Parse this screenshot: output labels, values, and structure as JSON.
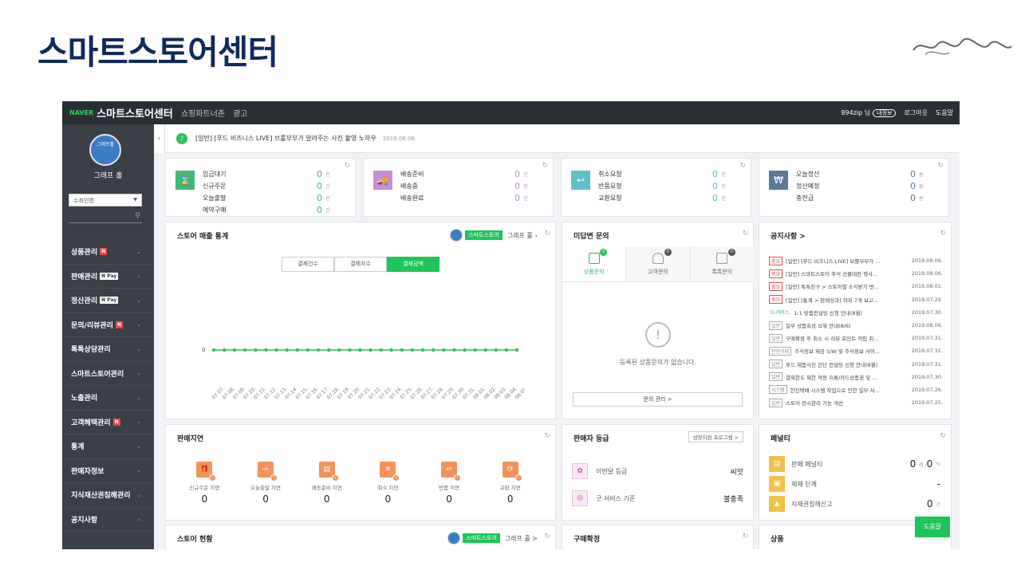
{
  "slide": {
    "title": "스마트스토어센터"
  },
  "topbar": {
    "naver": "NAVER",
    "title": "스마트스토어센터",
    "links": [
      "쇼핑파트너존",
      "광고"
    ],
    "user": "894zip 님",
    "badge": "내정보",
    "logout": "로그아웃",
    "help": "도움말"
  },
  "sidebar": {
    "shop_name": "그래프 홀",
    "avatar_text": "그래프홀",
    "select": "수취인명",
    "menu": [
      {
        "label": "상품관리",
        "badge": "N",
        "pay": ""
      },
      {
        "label": "판매관리",
        "badge": "",
        "pay": "N Pay"
      },
      {
        "label": "정산관리",
        "badge": "",
        "pay": "N Pay"
      },
      {
        "label": "문의/리뷰관리",
        "badge": "N",
        "pay": ""
      },
      {
        "label": "톡톡상담관리",
        "badge": "",
        "pay": ""
      },
      {
        "label": "스마트스토어관리",
        "badge": "",
        "pay": ""
      },
      {
        "label": "노출관리",
        "badge": "",
        "pay": ""
      },
      {
        "label": "고객혜택관리",
        "badge": "N",
        "pay": ""
      },
      {
        "label": "통계",
        "badge": "",
        "pay": ""
      },
      {
        "label": "판매자정보",
        "badge": "",
        "pay": ""
      },
      {
        "label": "지식재산권침해관리",
        "badge": "",
        "pay": ""
      },
      {
        "label": "공지사항",
        "badge": "",
        "pay": ""
      }
    ]
  },
  "notice": {
    "text": "[일반] [푸드 비즈니스 LIVE] 브롤부부가 알려주는 사진 촬영 노하우",
    "date": "2019.08.06."
  },
  "stats": [
    {
      "rows": [
        {
          "l": "입금대기",
          "v": "0",
          "u": "건"
        },
        {
          "l": "신규주문",
          "v": "0",
          "u": "건"
        },
        {
          "l": "오늘출발",
          "v": "0",
          "u": "건"
        },
        {
          "l": "예약구매",
          "v": "0",
          "u": "건"
        }
      ],
      "color": "#3dba78"
    },
    {
      "rows": [
        {
          "l": "배송준비",
          "v": "0",
          "u": "건"
        },
        {
          "l": "배송중",
          "v": "0",
          "u": "건"
        },
        {
          "l": "배송완료",
          "v": "0",
          "u": "건"
        }
      ],
      "color": "#c58fd6"
    },
    {
      "rows": [
        {
          "l": "취소요청",
          "v": "0",
          "u": "건"
        },
        {
          "l": "반품요청",
          "v": "0",
          "u": "건"
        },
        {
          "l": "교환요청",
          "v": "0",
          "u": "건"
        }
      ],
      "color": "#5cc2c8"
    },
    {
      "rows": [
        {
          "l": "오늘정산",
          "v": "0",
          "u": "원"
        },
        {
          "l": "정산예정",
          "v": "0",
          "u": "원"
        },
        {
          "l": "충전금",
          "v": "0",
          "u": "원"
        }
      ],
      "color": "#5a7a9a"
    }
  ],
  "sales": {
    "title": "스토어 매출 통계",
    "badge": "스마트스토어",
    "shop": "그래프 홀",
    "tabs": [
      "결제건수",
      "결제자수",
      "결제금액"
    ]
  },
  "chart_data": {
    "type": "line",
    "x": [
      "07.07.",
      "07.08.",
      "07.09.",
      "07.10.",
      "07.11.",
      "07.12.",
      "07.13.",
      "07.14.",
      "07.15.",
      "07.16.",
      "07.17.",
      "07.18.",
      "07.19.",
      "07.20.",
      "07.21.",
      "07.22.",
      "07.23.",
      "07.24.",
      "07.25.",
      "07.26.",
      "07.27.",
      "07.28.",
      "07.29.",
      "07.30.",
      "07.31.",
      "08.01.",
      "08.02.",
      "08.03.",
      "08.04.",
      "08.05."
    ],
    "values": [
      0,
      0,
      0,
      0,
      0,
      0,
      0,
      0,
      0,
      0,
      0,
      0,
      0,
      0,
      0,
      0,
      0,
      0,
      0,
      0,
      0,
      0,
      0,
      0,
      0,
      0,
      0,
      0,
      0,
      0
    ],
    "yticks": [
      "0"
    ],
    "color": "#2ec25a"
  },
  "qna": {
    "title": "미답변 문의",
    "tabs": [
      {
        "label": "상품문의",
        "count": "0"
      },
      {
        "label": "고객문의",
        "count": "0"
      },
      {
        "label": "톡톡문의",
        "count": "0"
      }
    ],
    "empty": "등록된 상품문의가 없습니다.",
    "button": "문의 관리 >"
  },
  "notices": {
    "title": "공지사항 >",
    "items": [
      {
        "tag": "중요",
        "type": "red",
        "text": "[일반] [푸드 비즈니스 LIVE] 브롤부부가 ...",
        "date": "2019.08.06."
      },
      {
        "tag": "중요",
        "type": "red",
        "text": "[일반] 스마트스토어 추석 선물대전 행사...",
        "date": "2019.08.06."
      },
      {
        "tag": "중요",
        "type": "red",
        "text": "[일반] 톡톡친구 > 스토어별 소식받기 변...",
        "date": "2019.08.01."
      },
      {
        "tag": "중요",
        "type": "red",
        "text": "[일반] [통계 > 판매성과] 하위 7개 보고...",
        "date": "2019.07.29."
      },
      {
        "tag": "D-커머스",
        "type": "green",
        "text": "1:1 맞춤컨설팅 신청 안내(8월)",
        "date": "2019.07.30."
      },
      {
        "tag": "일반",
        "type": "gray",
        "text": "일부 상품속성 삭제 안내(8/6)",
        "date": "2019.08.06."
      },
      {
        "tag": "일반",
        "type": "gray",
        "text": "구매확정 후 취소 시 리뷰 포인트 적립 취...",
        "date": "2019.07.31."
      },
      {
        "tag": "안전거래",
        "type": "gray",
        "text": "주식정보 제공 S/W 및 주식정보 사이...",
        "date": "2019.07.31."
      },
      {
        "tag": "일반",
        "type": "gray",
        "text": "푸드 제품사진 진단 컨설팅 신청 안내(8월)",
        "date": "2019.07.31."
      },
      {
        "tag": "일반",
        "type": "gray",
        "text": "결제한도 제한 적용 지류/카드상품권 및 ...",
        "date": "2019.07.30."
      },
      {
        "tag": "시스템",
        "type": "gray",
        "text": "한진택배 시스템 작업으로 인한 일부 서...",
        "date": "2019.07.26."
      },
      {
        "tag": "일반",
        "type": "gray",
        "text": "스토어 전시관리 기능 개선",
        "date": "2019.07.25."
      }
    ]
  },
  "delay": {
    "title": "판매지연",
    "items": [
      {
        "l": "신규주문 지연",
        "v": "0"
      },
      {
        "l": "오늘출발 지연",
        "v": "0"
      },
      {
        "l": "배송준비 지연",
        "v": "0"
      },
      {
        "l": "취소 지연",
        "v": "0"
      },
      {
        "l": "반품 지연",
        "v": "0"
      },
      {
        "l": "교환 지연",
        "v": "0"
      }
    ]
  },
  "grade": {
    "title": "판매자 등급",
    "button": "성장지원 프로그램 >",
    "rows": [
      {
        "l": "이번달 등급",
        "v": "씨앗"
      },
      {
        "l": "굿 서비스 기준",
        "v": "불충족"
      }
    ]
  },
  "penalty": {
    "title": "페널티",
    "rows": [
      {
        "l": "판매 페널티",
        "v": "0",
        "u": "점 / "
      },
      {
        "l": "제재 단계",
        "v": "-",
        "u": ""
      },
      {
        "l": "지재권침해신고",
        "v": "0",
        "u": "건"
      }
    ],
    "extra_v": "0",
    "extra_u": "%"
  },
  "store": {
    "title": "스토어 현황",
    "badge": "스마트스토어",
    "shop": "그래프 홀 >"
  },
  "purchase": {
    "title": "구매확정"
  },
  "product": {
    "title": "상품"
  },
  "help_button": "도움말"
}
